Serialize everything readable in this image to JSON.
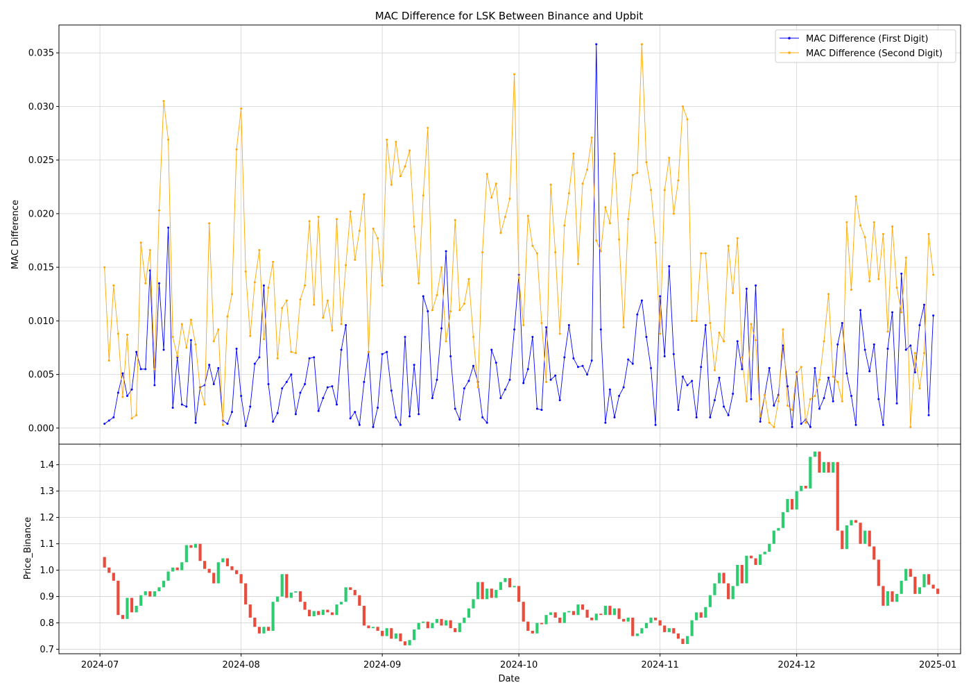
{
  "chart_data": [
    {
      "type": "line",
      "title": "MAC Difference for LSK Between Binance and Upbit",
      "xlabel": "",
      "ylabel": "MAC Difference",
      "xlim": [
        "2024-06-22",
        "2025-01-06"
      ],
      "ylim": [
        -0.0015,
        0.0376
      ],
      "y_ticks": [
        "0.000",
        "0.005",
        "0.010",
        "0.015",
        "0.020",
        "0.025",
        "0.030",
        "0.035"
      ],
      "grid": true,
      "legend_position": "top-right",
      "x_start": "2024-07-02",
      "series": [
        {
          "name": "MAC Difference (First Digit)",
          "color": "#0000ff",
          "values": [
            0.0004,
            0.0007,
            0.001,
            0.0033,
            0.0051,
            0.003,
            0.0036,
            0.0071,
            0.0055,
            0.0055,
            0.0147,
            0.004,
            0.0135,
            0.0073,
            0.0187,
            0.0019,
            0.0066,
            0.0022,
            0.002,
            0.0082,
            0.0005,
            0.0038,
            0.004,
            0.0059,
            0.0041,
            0.0056,
            0.0007,
            0.0004,
            0.0015,
            0.0074,
            0.003,
            0.0002,
            0.002,
            0.006,
            0.0066,
            0.0133,
            0.0041,
            0.0006,
            0.0014,
            0.0037,
            0.0043,
            0.005,
            0.0013,
            0.0033,
            0.0041,
            0.0065,
            0.0066,
            0.0016,
            0.0028,
            0.0038,
            0.0039,
            0.0022,
            0.0073,
            0.0096,
            0.0009,
            0.0015,
            0.0003,
            0.0043,
            0.0071,
            0.0001,
            0.0019,
            0.0069,
            0.0071,
            0.0035,
            0.001,
            0.0003,
            0.0085,
            0.0011,
            0.0059,
            0.0013,
            0.0123,
            0.0109,
            0.0028,
            0.0045,
            0.0093,
            0.0165,
            0.0067,
            0.0018,
            0.0008,
            0.0037,
            0.0044,
            0.0058,
            0.0043,
            0.001,
            0.0005,
            0.0073,
            0.0061,
            0.0028,
            0.0036,
            0.0045,
            0.0092,
            0.0143,
            0.0042,
            0.0055,
            0.0085,
            0.0018,
            0.0017,
            0.0094,
            0.0045,
            0.0049,
            0.0026,
            0.0066,
            0.0096,
            0.0065,
            0.0057,
            0.0058,
            0.005,
            0.0063,
            0.0358,
            0.0092,
            0.0005,
            0.0036,
            0.001,
            0.003,
            0.0038,
            0.0064,
            0.006,
            0.0106,
            0.0119,
            0.0085,
            0.0056,
            0.0003,
            0.0123,
            0.0067,
            0.0151,
            0.0069,
            0.0017,
            0.0048,
            0.004,
            0.0044,
            0.001,
            0.0057,
            0.0096,
            0.001,
            0.0026,
            0.0047,
            0.002,
            0.0012,
            0.0032,
            0.0081,
            0.0055,
            0.013,
            0.0027,
            0.0133,
            0.0006,
            0.0031,
            0.0056,
            0.0021,
            0.0031,
            0.0077,
            0.0039,
            0.0001,
            0.0052,
            0.0004,
            0.0008,
            0.0001,
            0.0056,
            0.0018,
            0.0028,
            0.0047,
            0.0025,
            0.0078,
            0.0098,
            0.0051,
            0.003,
            0.0003,
            0.011,
            0.0073,
            0.0053,
            0.0078,
            0.0027,
            0.0003,
            0.0074,
            0.0108,
            0.0023,
            0.0144,
            0.0073,
            0.0077,
            0.0052,
            0.0096,
            0.0115,
            0.0012,
            0.0105
          ]
        },
        {
          "name": "MAC Difference (Second Digit)",
          "color": "#ffa500",
          "values": [
            0.015,
            0.0063,
            0.0133,
            0.0088,
            0.0029,
            0.0087,
            0.0009,
            0.0012,
            0.0173,
            0.0135,
            0.0166,
            0.0055,
            0.0203,
            0.0305,
            0.0269,
            0.0085,
            0.0067,
            0.0097,
            0.0075,
            0.0101,
            0.0078,
            0.0037,
            0.0022,
            0.0191,
            0.0081,
            0.0092,
            0.0003,
            0.0104,
            0.0125,
            0.026,
            0.0298,
            0.0146,
            0.0086,
            0.0136,
            0.0166,
            0.0083,
            0.0131,
            0.0155,
            0.0065,
            0.0112,
            0.0119,
            0.0071,
            0.007,
            0.012,
            0.0133,
            0.0193,
            0.0115,
            0.0197,
            0.0103,
            0.0119,
            0.0091,
            0.0195,
            0.0097,
            0.0152,
            0.0202,
            0.0157,
            0.0184,
            0.0218,
            0.0071,
            0.0186,
            0.0177,
            0.0133,
            0.0269,
            0.0227,
            0.0267,
            0.0235,
            0.0244,
            0.0259,
            0.0188,
            0.0135,
            0.0217,
            0.028,
            0.011,
            0.0124,
            0.015,
            0.0081,
            0.0109,
            0.0194,
            0.011,
            0.0116,
            0.0139,
            0.0085,
            0.0038,
            0.0164,
            0.0237,
            0.0215,
            0.0228,
            0.0182,
            0.0197,
            0.0214,
            0.033,
            0.014,
            0.0096,
            0.0198,
            0.017,
            0.0163,
            0.0098,
            0.0043,
            0.0227,
            0.0164,
            0.0088,
            0.0189,
            0.0219,
            0.0256,
            0.0153,
            0.0228,
            0.0241,
            0.0271,
            0.0175,
            0.0165,
            0.0206,
            0.0191,
            0.0256,
            0.0176,
            0.0094,
            0.0195,
            0.0236,
            0.0238,
            0.0358,
            0.0248,
            0.0222,
            0.0173,
            0.0088,
            0.0222,
            0.0252,
            0.02,
            0.0231,
            0.03,
            0.0288,
            0.01,
            0.01,
            0.0163,
            0.0163,
            0.0098,
            0.0054,
            0.0089,
            0.0081,
            0.017,
            0.0126,
            0.0177,
            0.0066,
            0.0025,
            0.0097,
            0.0082,
            0.0011,
            0.0031,
            0.0005,
            0.0001,
            0.0025,
            0.0092,
            0.0021,
            0.0017,
            0.0051,
            0.0057,
            0.0005,
            0.0027,
            0.003,
            0.0045,
            0.0081,
            0.0125,
            0.0048,
            0.0043,
            0.0025,
            0.0192,
            0.0129,
            0.0216,
            0.0189,
            0.0178,
            0.0137,
            0.0192,
            0.0139,
            0.0181,
            0.009,
            0.0188,
            0.0131,
            0.0108,
            0.0159,
            0.0001,
            0.007,
            0.0037,
            0.007,
            0.0181,
            0.0143
          ]
        }
      ]
    },
    {
      "type": "candlestick",
      "title": "",
      "xlabel": "Date",
      "ylabel": "Price_Binance",
      "xlim": [
        "2024-06-22",
        "2025-01-06"
      ],
      "ylim": [
        0.683,
        1.478
      ],
      "y_ticks": [
        "0.7",
        "0.8",
        "0.9",
        "1.0",
        "1.1",
        "1.2",
        "1.3",
        "1.4"
      ],
      "x_ticks": [
        "2024-07",
        "2024-08",
        "2024-09",
        "2024-10",
        "2024-11",
        "2024-12",
        "2025-01"
      ],
      "grid": true,
      "x_start": "2024-07-01",
      "up_color": "#2ecc71",
      "down_color": "#e74c3c",
      "closes": [
        1.05,
        1.01,
        0.99,
        0.96,
        0.83,
        0.815,
        0.895,
        0.84,
        0.865,
        0.905,
        0.92,
        0.9,
        0.92,
        0.935,
        0.96,
        0.995,
        1.01,
        1.0,
        1.03,
        1.095,
        1.085,
        1.1,
        1.035,
        1.005,
        0.99,
        0.95,
        1.03,
        1.045,
        1.015,
        1.0,
        0.985,
        0.95,
        0.87,
        0.82,
        0.785,
        0.76,
        0.785,
        0.77,
        0.88,
        0.9,
        0.985,
        0.895,
        0.915,
        0.92,
        0.88,
        0.85,
        0.825,
        0.845,
        0.83,
        0.85,
        0.84,
        0.83,
        0.87,
        0.88,
        0.935,
        0.925,
        0.905,
        0.865,
        0.79,
        0.78,
        0.785,
        0.77,
        0.75,
        0.78,
        0.74,
        0.76,
        0.73,
        0.715,
        0.735,
        0.775,
        0.8,
        0.805,
        0.78,
        0.8,
        0.815,
        0.79,
        0.81,
        0.78,
        0.765,
        0.8,
        0.82,
        0.855,
        0.89,
        0.955,
        0.89,
        0.93,
        0.895,
        0.925,
        0.955,
        0.97,
        0.935,
        0.94,
        0.88,
        0.805,
        0.77,
        0.76,
        0.8,
        0.795,
        0.83,
        0.84,
        0.82,
        0.8,
        0.84,
        0.845,
        0.83,
        0.87,
        0.85,
        0.82,
        0.81,
        0.835,
        0.83,
        0.865,
        0.83,
        0.855,
        0.815,
        0.805,
        0.82,
        0.75,
        0.76,
        0.78,
        0.8,
        0.82,
        0.81,
        0.79,
        0.765,
        0.78,
        0.76,
        0.74,
        0.72,
        0.75,
        0.81,
        0.84,
        0.82,
        0.86,
        0.905,
        0.95,
        0.99,
        0.95,
        0.89,
        0.94,
        1.02,
        0.95,
        1.055,
        1.045,
        1.02,
        1.06,
        1.07,
        1.1,
        1.15,
        1.16,
        1.22,
        1.27,
        1.23,
        1.3,
        1.32,
        1.31,
        1.43,
        1.45,
        1.37,
        1.41,
        1.37,
        1.41,
        1.15,
        1.08,
        1.17,
        1.19,
        1.18,
        1.1,
        1.15,
        1.09,
        1.04,
        0.94,
        0.865,
        0.92,
        0.88,
        0.91,
        0.96,
        1.005,
        0.975,
        0.91,
        0.935,
        0.985,
        0.945,
        0.93,
        0.91
      ]
    }
  ]
}
